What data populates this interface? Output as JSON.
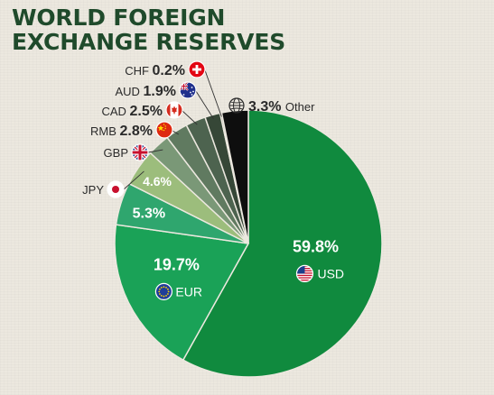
{
  "title": {
    "line1": "WORLD FOREIGN",
    "line2": "EXCHANGE RESERVES"
  },
  "chart_data": {
    "type": "pie",
    "title": "WORLD FOREIGN EXCHANGE RESERVES",
    "unit": "%",
    "slices": [
      {
        "label": "USD",
        "value": 59.8,
        "value_text": "59.8%",
        "color": "#108a3e",
        "icon": "us-flag-icon"
      },
      {
        "label": "EUR",
        "value": 19.7,
        "value_text": "19.7%",
        "color": "#1aa257",
        "icon": "eu-flag-icon"
      },
      {
        "label": "",
        "value": 5.3,
        "value_text": "5.3%",
        "color": "#2fa66e",
        "icon": ""
      },
      {
        "label": "JPY",
        "value": 4.6,
        "value_text": "4.6%",
        "color": "#9cbd7c",
        "icon": "japan-flag-icon"
      },
      {
        "label": "GBP",
        "value": 2.8,
        "value_text": "",
        "color": "#7a9877",
        "icon": "uk-flag-icon"
      },
      {
        "label": "RMB",
        "value": 2.8,
        "value_text": "2.8%",
        "color": "#607a60",
        "icon": "china-flag-icon"
      },
      {
        "label": "CAD",
        "value": 2.5,
        "value_text": "2.5%",
        "color": "#4d634f",
        "icon": "canada-flag-icon"
      },
      {
        "label": "AUD",
        "value": 1.9,
        "value_text": "1.9%",
        "color": "#364737",
        "icon": "australia-flag-icon"
      },
      {
        "label": "CHF",
        "value": 0.2,
        "value_text": "0.2%",
        "color": "#555555",
        "icon": "swiss-flag-icon"
      },
      {
        "label": "Other",
        "value": 3.3,
        "value_text": "3.3%",
        "color": "#0e0e0e",
        "icon": "globe-icon"
      }
    ]
  }
}
